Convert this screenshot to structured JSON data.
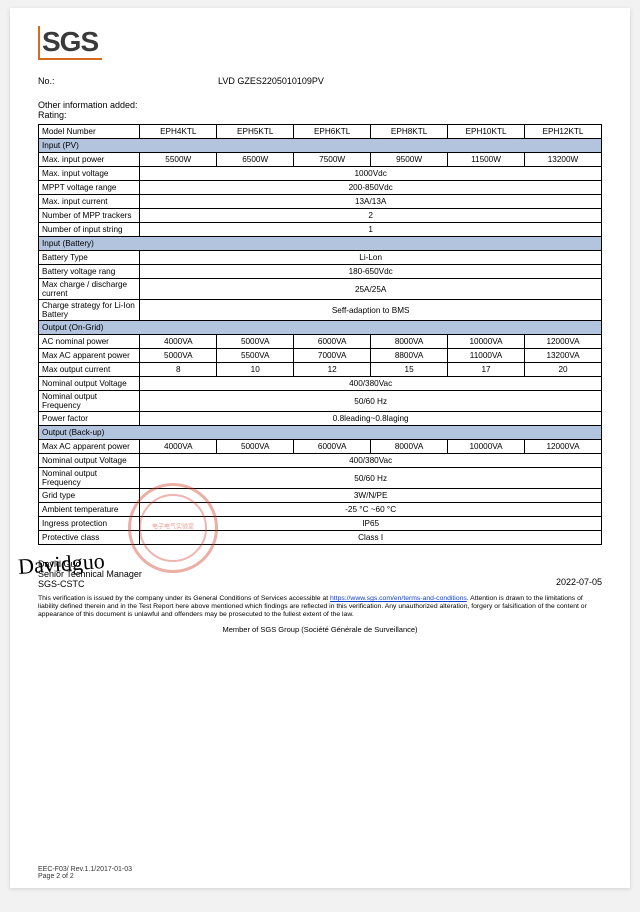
{
  "logo": "SGS",
  "ref": {
    "label": "No.:",
    "value": "LVD GZES2205010109PV"
  },
  "intro": {
    "line1": "Other information added:",
    "line2": "Rating:"
  },
  "table": {
    "col_widths_pct": [
      18,
      13.67,
      13.67,
      13.67,
      13.67,
      13.67,
      13.67
    ],
    "section_bg": "#b3c4de",
    "border_color": "#000000",
    "font_size_pt": 8,
    "header": [
      "Model Number",
      "EPH4KTL",
      "EPH5KTL",
      "EPH6KTL",
      "EPH8KTL",
      "EPH10KTL",
      "EPH12KTL"
    ],
    "sections": [
      {
        "title": "Input (PV)",
        "rows": [
          {
            "label": "Max. input power",
            "cells": [
              "5500W",
              "6500W",
              "7500W",
              "9500W",
              "11500W",
              "13200W"
            ]
          },
          {
            "label": "Max. input voltage",
            "merged": "1000Vdc"
          },
          {
            "label": "MPPT voltage range",
            "merged": "200-850Vdc"
          },
          {
            "label": "Max. input current",
            "merged": "13A/13A"
          },
          {
            "label": "Number of MPP trackers",
            "merged": "2"
          },
          {
            "label": "Number of input string",
            "merged": "1"
          }
        ]
      },
      {
        "title": "Input (Battery)",
        "rows": [
          {
            "label": "Battery Type",
            "merged": "Li-Lon"
          },
          {
            "label": "Battery voltage rang",
            "merged": "180-650Vdc"
          },
          {
            "label": "Max charge / discharge current",
            "merged": "25A/25A"
          },
          {
            "label": "Charge strategy for Li-Ion Battery",
            "merged": "Seff-adaption to BMS"
          }
        ]
      },
      {
        "title": "Output (On-Grid)",
        "rows": [
          {
            "label": "AC nominal power",
            "cells": [
              "4000VA",
              "5000VA",
              "6000VA",
              "8000VA",
              "10000VA",
              "12000VA"
            ]
          },
          {
            "label": "Max AC apparent power",
            "cells": [
              "5000VA",
              "5500VA",
              "7000VA",
              "8800VA",
              "11000VA",
              "13200VA"
            ]
          },
          {
            "label": "Max output current",
            "cells": [
              "8",
              "10",
              "12",
              "15",
              "17",
              "20"
            ]
          },
          {
            "label": "Nominal output Voltage",
            "merged": "400/380Vac"
          },
          {
            "label": "Nominal output Frequency",
            "merged": "50/60 Hz"
          },
          {
            "label": "Power factor",
            "merged": "0.8leading~0.8laging"
          }
        ]
      },
      {
        "title": "Output (Back-up)",
        "rows": [
          {
            "label": "Max AC apparent power",
            "cells": [
              "4000VA",
              "5000VA",
              "6000VA",
              "8000VA",
              "10000VA",
              "12000VA"
            ]
          },
          {
            "label": "Nominal output Voltage",
            "merged": "400/380Vac"
          },
          {
            "label": "Nominal output Frequency",
            "merged": "50/60 Hz"
          },
          {
            "label": "Grid type",
            "merged": "3W/N/PE"
          },
          {
            "label": "Ambient temperature",
            "merged": "-25 °C ~60 °C"
          },
          {
            "label": "Ingress protection",
            "merged": "IP65"
          },
          {
            "label": "Protective class",
            "merged": "Class I"
          }
        ]
      }
    ]
  },
  "sig": {
    "name": "David Guo",
    "title": "Senior Technical Manager",
    "org": "SGS-CSTC",
    "date": "2022-07-05",
    "stamp_center": "电子电气实验室"
  },
  "disclaimer": {
    "line1": "This verification is issued by the company under its General Conditions of Services accessible at",
    "url": "https://www.sgs.com/en/terms-and-conditions",
    "line2": ". Attention is drawn to the limitations of liability defined therein and in the Test Report here above mentioned which findings are reflected in this verification. Any unauthorized alteration, forgery or falsification of the content or appearance of this document is unlawful and offenders may be prosecuted to the fullest extent of the law."
  },
  "member": "Member of SGS Group (Société Générale de Surveillance)",
  "footer": {
    "l1": "EEC-F03/ Rev.1.1/2017-01-03",
    "l2": "Page 2 of 2"
  }
}
